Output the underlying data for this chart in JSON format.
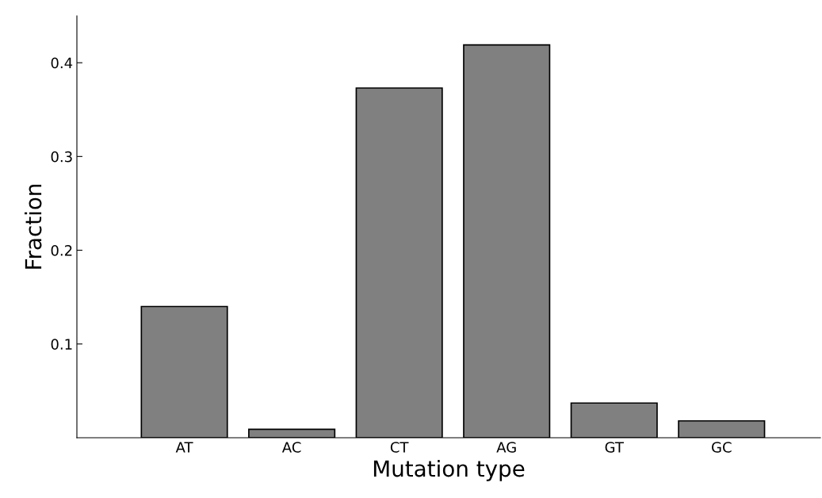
{
  "chart_data": {
    "type": "bar",
    "xlabel": "Mutation type",
    "ylabel": "Fraction",
    "categories": [
      "AT",
      "AC",
      "CT",
      "AG",
      "GT",
      "GC"
    ],
    "values": [
      0.14,
      0.009,
      0.373,
      0.419,
      0.037,
      0.018
    ],
    "color": "#808080",
    "ylim": [
      0,
      0.45
    ],
    "yticks": [
      0.1,
      0.2,
      0.3,
      0.4
    ],
    "grid": false
  }
}
